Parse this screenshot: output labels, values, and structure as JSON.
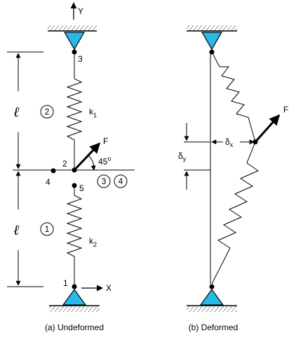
{
  "axes": {
    "y": "Y",
    "x": "X"
  },
  "nodes": {
    "n1": "1",
    "n2": "2",
    "n3": "3",
    "n4": "4",
    "n5": "5"
  },
  "elements": {
    "e1": "1",
    "e2": "2",
    "e3": "3",
    "e4": "4"
  },
  "springs": {
    "k1": {
      "base": "k",
      "sub": "1"
    },
    "k2": {
      "base": "k",
      "sub": "2"
    }
  },
  "force": "F",
  "angle": {
    "value": "45",
    "unit": "o"
  },
  "length_symbol": "ℓ",
  "deformation": {
    "dx": {
      "base": "δ",
      "sub": "x"
    },
    "dy": {
      "base": "δ",
      "sub": "y"
    }
  },
  "captions": {
    "undeformed": "(a) Undeformed",
    "deformed": "(b) Deformed"
  },
  "colors": {
    "support_fill": "#29b9e8",
    "stroke": "#000000"
  }
}
